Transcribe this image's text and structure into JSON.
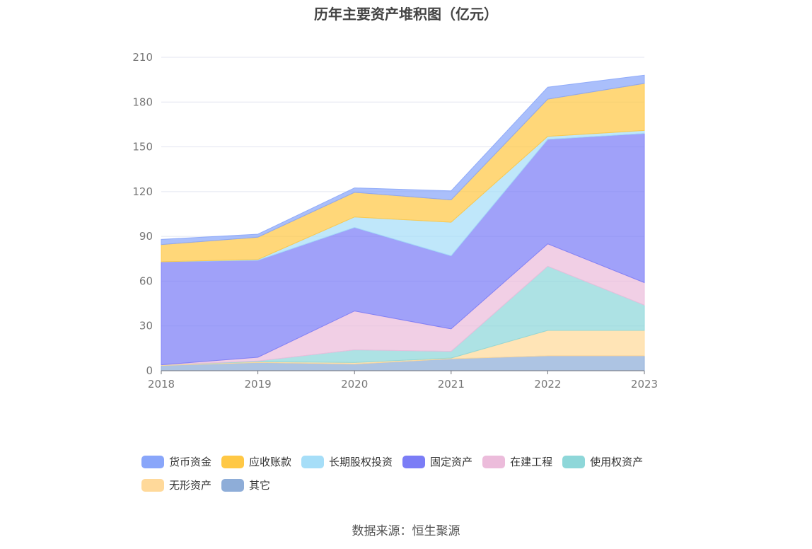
{
  "chart_data": {
    "type": "area",
    "stacked": true,
    "title": "历年主要资产堆积图（亿元）",
    "source": "数据来源：恒生聚源",
    "x": [
      "2018",
      "2019",
      "2020",
      "2021",
      "2022",
      "2023"
    ],
    "y_ticks": [
      "0",
      "30",
      "60",
      "90",
      "120",
      "150",
      "180",
      "210"
    ],
    "ylim": [
      0,
      210
    ],
    "grid": true,
    "legend_position": "bottom",
    "series": [
      {
        "name": "其它",
        "color": "#8eadd8",
        "values": [
          3.5,
          5.5,
          4.5,
          8.0,
          10.0,
          10.0
        ]
      },
      {
        "name": "无形资产",
        "color": "#ffd99a",
        "values": [
          0.5,
          0.5,
          1.0,
          0.5,
          17.0,
          17.0
        ]
      },
      {
        "name": "使用权资产",
        "color": "#8ed7d9",
        "values": [
          0.0,
          0.5,
          8.5,
          4.5,
          43.0,
          17.0
        ]
      },
      {
        "name": "在建工程",
        "color": "#ecbcdb",
        "values": [
          0.0,
          2.5,
          26.0,
          15.0,
          15.0,
          15.0
        ]
      },
      {
        "name": "固定资产",
        "color": "#7b7df6",
        "values": [
          69.0,
          65.0,
          56.0,
          49.0,
          70.0,
          100.0
        ]
      },
      {
        "name": "长期股权投资",
        "color": "#a6def8",
        "values": [
          0.0,
          0.5,
          7.0,
          22.5,
          2.0,
          2.0
        ]
      },
      {
        "name": "应收账款",
        "color": "#ffc845",
        "values": [
          11.5,
          15.0,
          16.5,
          15.0,
          25.0,
          31.5
        ]
      },
      {
        "name": "货币资金",
        "color": "#89a6fa",
        "values": [
          3.5,
          2.0,
          3.0,
          6.0,
          8.0,
          5.5
        ]
      }
    ],
    "legend_order": [
      "货币资金",
      "应收账款",
      "长期股权投资",
      "固定资产",
      "在建工程",
      "使用权资产",
      "无形资产",
      "其它"
    ]
  }
}
